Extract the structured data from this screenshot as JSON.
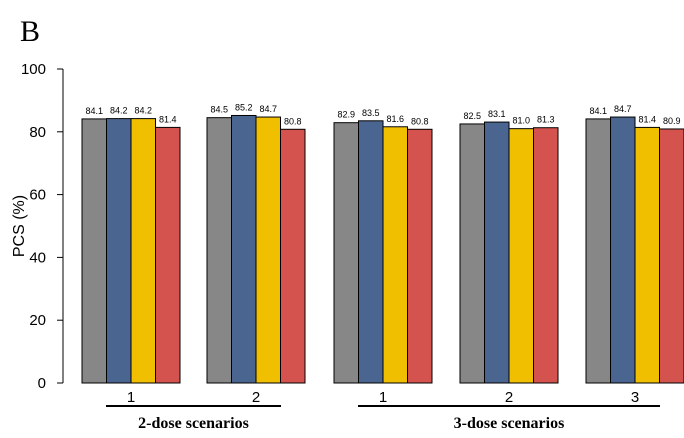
{
  "panel_label": "B",
  "chart_data": {
    "type": "bar",
    "title": "",
    "ylabel": "PCS (%)",
    "ylim": [
      0,
      100
    ],
    "yticks": [
      0,
      20,
      40,
      60,
      80,
      100
    ],
    "bar_colors": [
      "#878787",
      "#4a6590",
      "#f0c000",
      "#d4534e"
    ],
    "scenario_groups": [
      {
        "label": "2-dose scenarios",
        "scenarios": [
          0,
          1
        ]
      },
      {
        "label": "3-dose scenarios",
        "scenarios": [
          2,
          3,
          4
        ]
      }
    ],
    "scenarios": [
      {
        "tick": "1",
        "values": [
          84.1,
          84.2,
          84.2,
          81.4
        ],
        "labels": [
          "84.1",
          "84.2",
          "84.2",
          "81.4"
        ]
      },
      {
        "tick": "2",
        "values": [
          84.5,
          85.2,
          84.7,
          80.8
        ],
        "labels": [
          "84.5",
          "85.2",
          "84.7",
          "80.8"
        ]
      },
      {
        "tick": "1",
        "values": [
          82.9,
          83.5,
          81.6,
          80.8
        ],
        "labels": [
          "82.9",
          "83.5",
          "81.6",
          "80.8"
        ]
      },
      {
        "tick": "2",
        "values": [
          82.5,
          83.1,
          81.0,
          81.3
        ],
        "labels": [
          "82.5",
          "83.1",
          "81.0",
          "81.3"
        ]
      },
      {
        "tick": "3",
        "values": [
          84.1,
          84.7,
          81.4,
          80.9
        ],
        "labels": [
          "84.1",
          "84.7",
          "81.4",
          "80.9"
        ]
      }
    ]
  }
}
